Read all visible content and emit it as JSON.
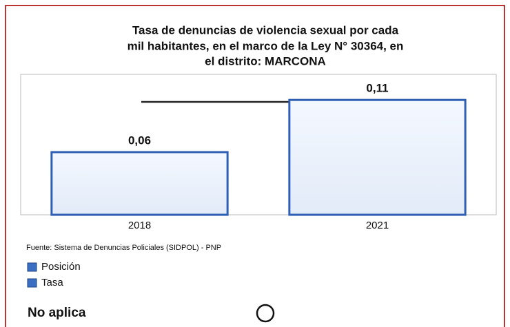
{
  "chart_data": {
    "type": "bar",
    "title_lines": [
      "Tasa de denuncias de violencia sexual por cada",
      "mil habitantes, en el marco de la Ley N° 30364, en",
      "el distrito: MARCONA"
    ],
    "categories": [
      "2018",
      "2021"
    ],
    "values": [
      0.06,
      0.11
    ],
    "value_labels": [
      "0,06",
      "0,11"
    ],
    "color": "#2f5fb3",
    "ylim": [
      0,
      0.12
    ],
    "source": "Fuente: Sistema de Denuncias Policiales (SIDPOL) - PNP",
    "legend": [
      {
        "name": "Posición",
        "color": "#3a6fc4"
      },
      {
        "name": "Tasa",
        "color": "#3a6fc4"
      }
    ],
    "status": "No aplica"
  }
}
